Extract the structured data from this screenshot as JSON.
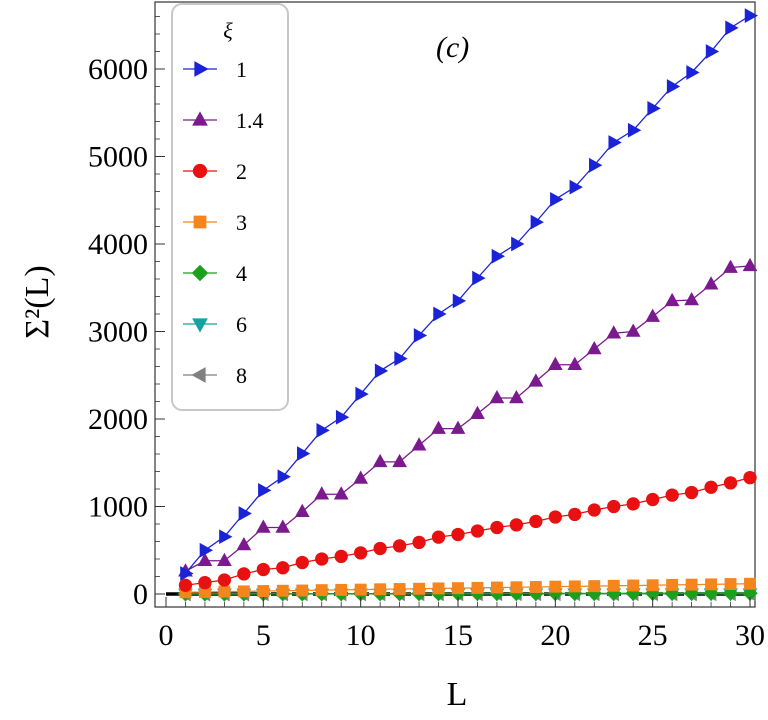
{
  "chart_data": {
    "type": "line",
    "panel_label": "(c)",
    "xlabel": "L",
    "ylabel": "Σ²(L)",
    "xlim": [
      0,
      30
    ],
    "ylim": [
      -100,
      6700
    ],
    "x_ticks": [
      0,
      5,
      10,
      15,
      20,
      25,
      30
    ],
    "y_ticks": [
      0,
      1000,
      2000,
      3000,
      4000,
      5000,
      6000
    ],
    "grid": false,
    "legend": {
      "title": "ξ",
      "position": "top-left"
    },
    "x": [
      1,
      2,
      3,
      4,
      5,
      6,
      7,
      8,
      9,
      10,
      11,
      12,
      13,
      14,
      15,
      16,
      17,
      18,
      19,
      20,
      21,
      22,
      23,
      24,
      25,
      26,
      27,
      28,
      29,
      30
    ],
    "reference_line": {
      "y": 0,
      "style": "dashed",
      "color": "#000000"
    },
    "series": [
      {
        "name": "1",
        "marker": "triangle-right",
        "color": "#1a23d8",
        "values": [
          235,
          500,
          655,
          920,
          1185,
          1340,
          1605,
          1870,
          2020,
          2285,
          2550,
          2690,
          2955,
          3200,
          3350,
          3610,
          3860,
          4000,
          4250,
          4510,
          4650,
          4900,
          5160,
          5300,
          5550,
          5800,
          5960,
          6200,
          6470,
          6610
        ]
      },
      {
        "name": "1.4",
        "marker": "triangle-up",
        "color": "#7a1a8c",
        "values": [
          260,
          380,
          380,
          560,
          760,
          760,
          940,
          1140,
          1140,
          1320,
          1510,
          1510,
          1700,
          1890,
          1890,
          2060,
          2240,
          2240,
          2430,
          2620,
          2620,
          2800,
          2980,
          3000,
          3170,
          3350,
          3360,
          3540,
          3730,
          3750
        ]
      },
      {
        "name": "2",
        "marker": "circle",
        "color": "#e81010",
        "values": [
          100,
          130,
          160,
          230,
          280,
          300,
          360,
          400,
          430,
          470,
          520,
          550,
          590,
          650,
          680,
          720,
          760,
          790,
          830,
          880,
          910,
          960,
          1000,
          1030,
          1080,
          1130,
          1160,
          1220,
          1270,
          1330
        ]
      },
      {
        "name": "3",
        "marker": "square",
        "color": "#f7851e",
        "values": [
          20,
          23,
          27,
          30,
          34,
          37,
          40,
          44,
          47,
          50,
          54,
          57,
          60,
          64,
          67,
          70,
          74,
          77,
          80,
          84,
          87,
          90,
          94,
          97,
          100,
          104,
          107,
          110,
          114,
          117
        ]
      },
      {
        "name": "4",
        "marker": "diamond",
        "color": "#1ba01b",
        "values": [
          2,
          2,
          2,
          3,
          3,
          3,
          3,
          4,
          4,
          4,
          4,
          5,
          5,
          5,
          5,
          6,
          6,
          6,
          6,
          7,
          7,
          7,
          7,
          8,
          8,
          8,
          8,
          9,
          9,
          9
        ]
      },
      {
        "name": "6",
        "marker": "triangle-down",
        "color": "#16a0a0",
        "values": [
          1,
          1,
          1,
          1,
          2,
          2,
          2,
          2,
          2,
          2,
          3,
          3,
          3,
          3,
          3,
          3,
          3,
          4,
          4,
          4,
          4,
          4,
          4,
          4,
          5,
          5,
          5,
          5,
          5,
          5
        ]
      },
      {
        "name": "8",
        "marker": "triangle-left",
        "color": "#808080",
        "values": [
          0,
          0,
          0,
          0,
          1,
          1,
          1,
          1,
          1,
          1,
          1,
          1,
          1,
          1,
          1,
          1,
          2,
          2,
          2,
          2,
          2,
          2,
          2,
          2,
          2,
          2,
          2,
          2,
          2,
          2
        ]
      }
    ]
  }
}
